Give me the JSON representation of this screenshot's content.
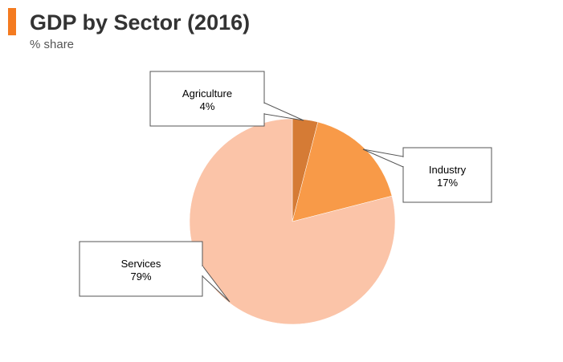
{
  "header": {
    "title": "GDP by Sector (2016)",
    "subtitle": "% share"
  },
  "colors": {
    "accent": "#f47b20"
  },
  "chart_data": {
    "type": "pie",
    "title": "GDP by Sector (2016)",
    "subtitle": "% share",
    "legend": "none",
    "slices": [
      {
        "label": "Agriculture",
        "value": 4,
        "display": "4%",
        "color": "#d57b35"
      },
      {
        "label": "Industry",
        "value": 17,
        "display": "17%",
        "color": "#f89a48"
      },
      {
        "label": "Services",
        "value": 79,
        "display": "79%",
        "color": "#fbc4a8"
      }
    ]
  }
}
